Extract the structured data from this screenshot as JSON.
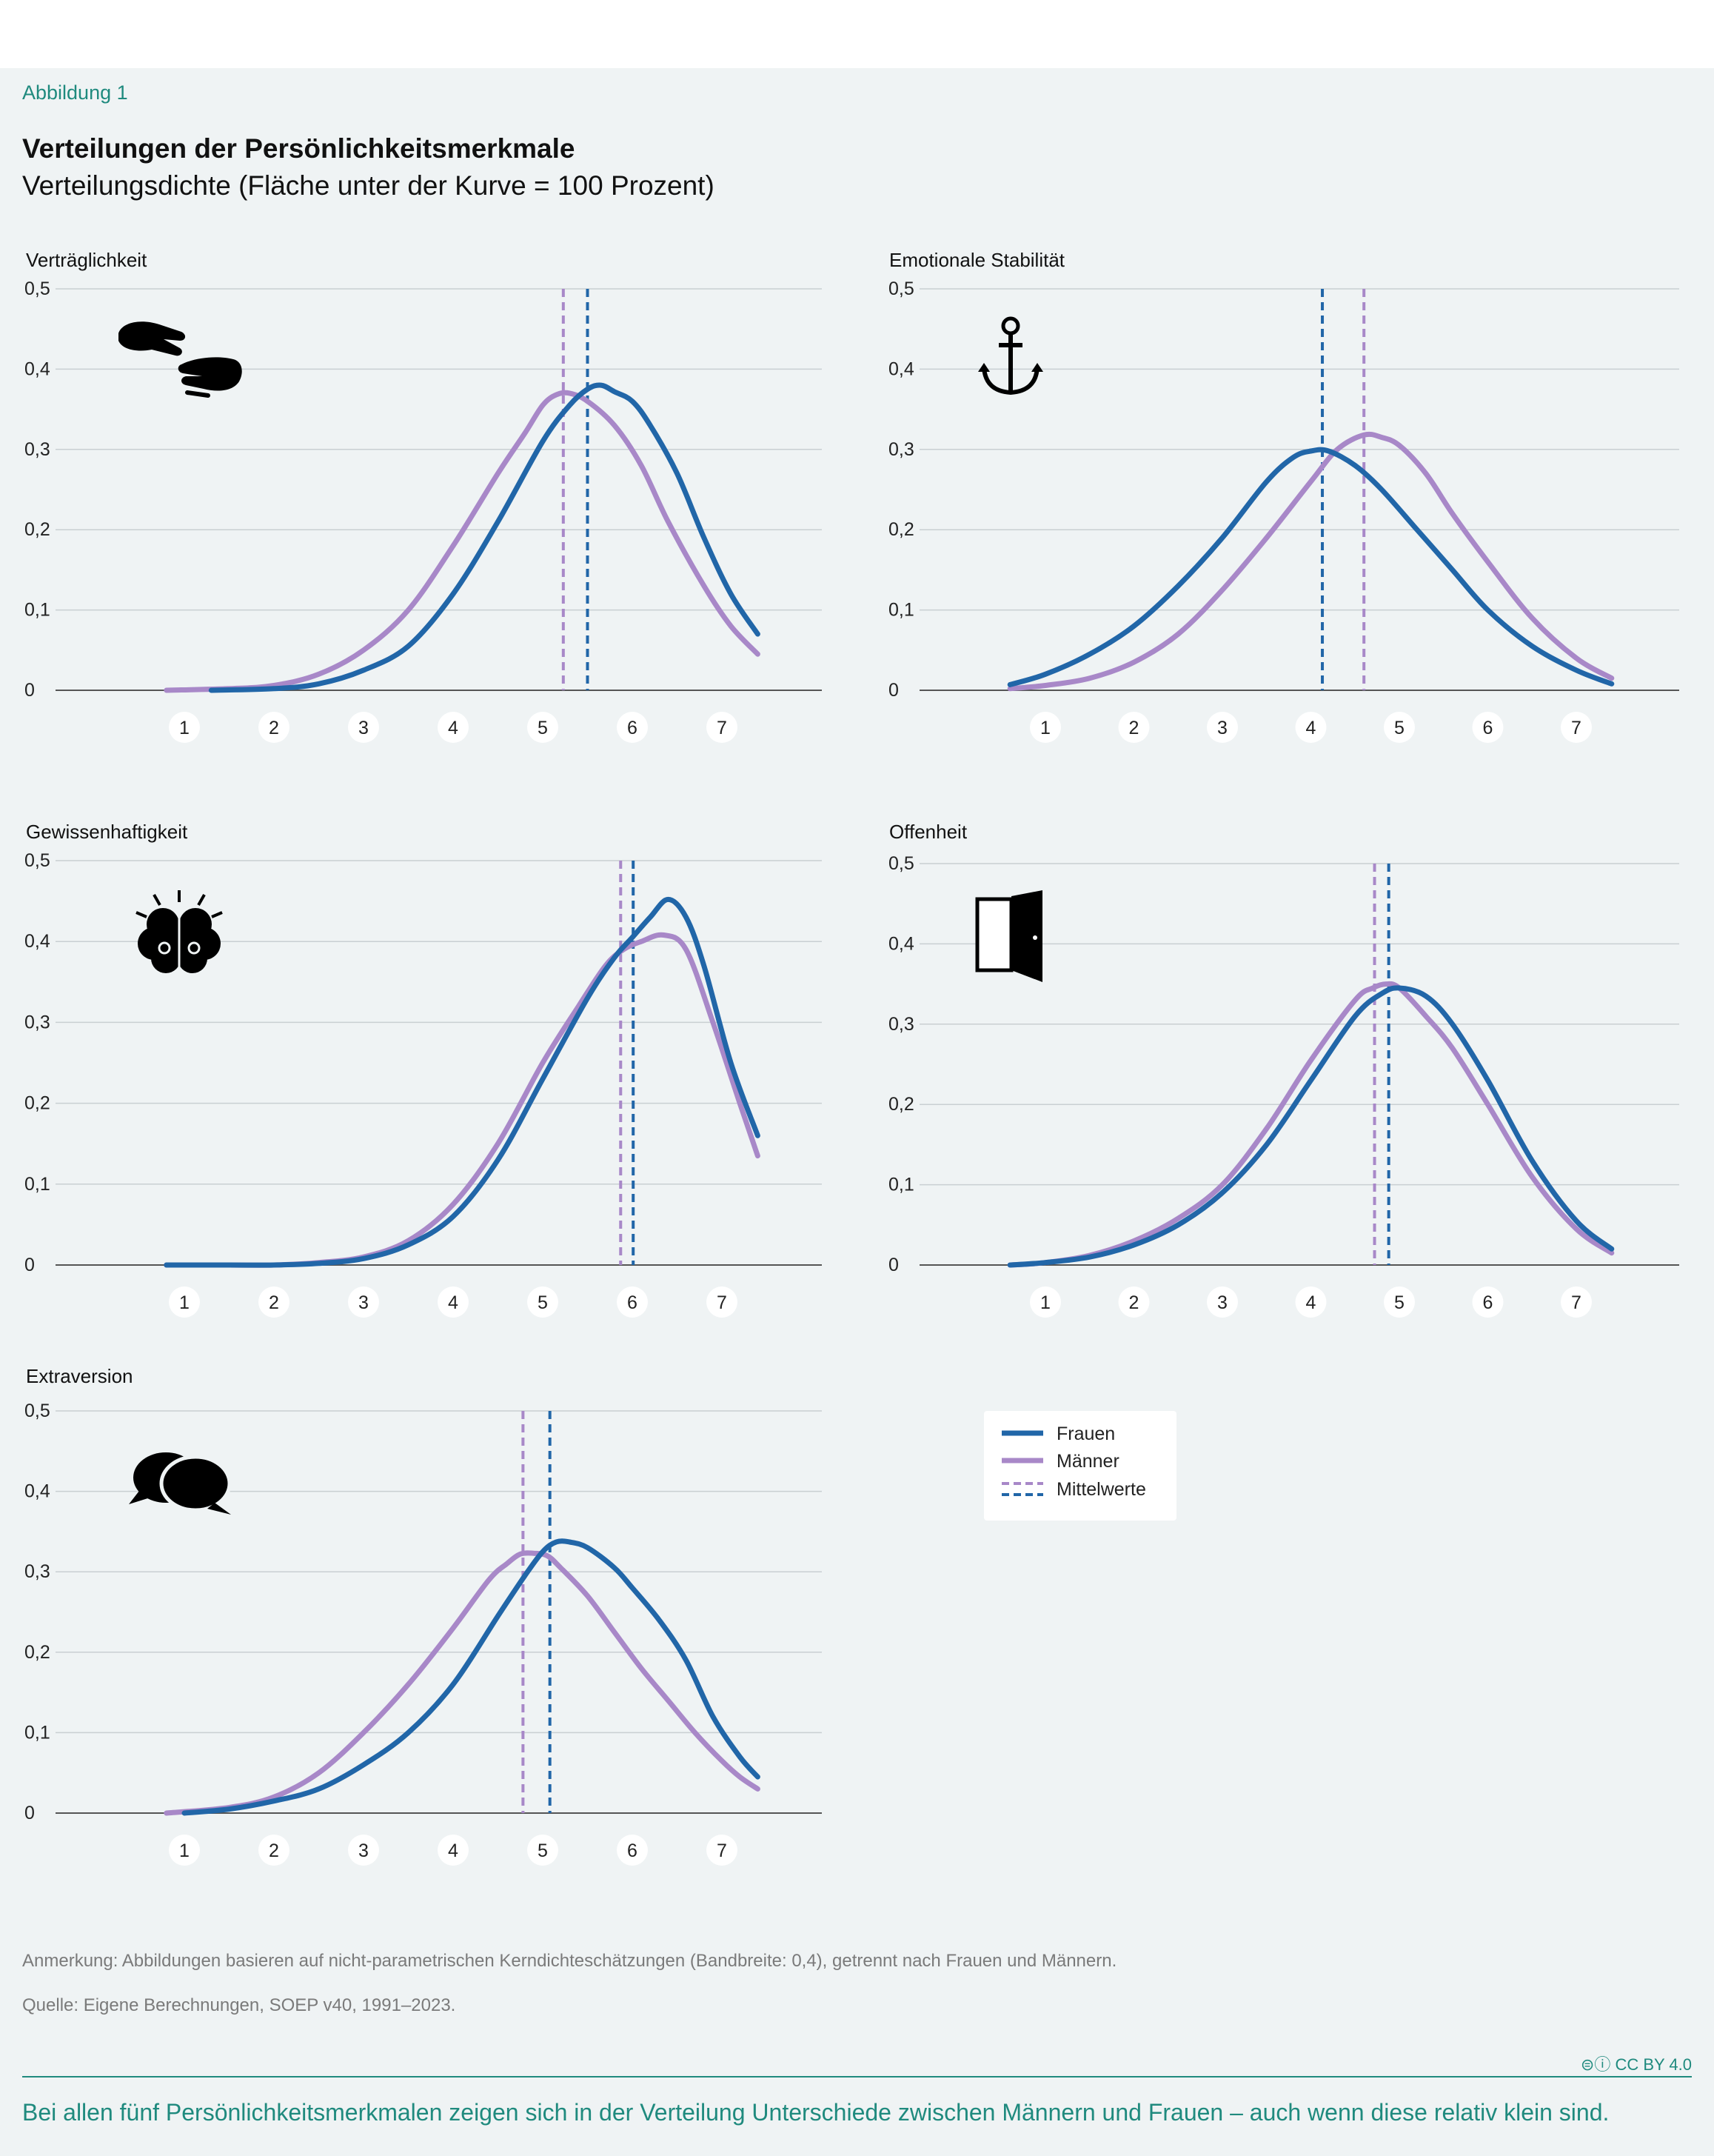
{
  "figure_label": "Abbildung 1",
  "title": "Verteilungen der Persönlichkeitsmerkmale",
  "subtitle": "Verteilungsdichte (Fläche unter der Kurve = 100 Prozent)",
  "note": "Anmerkung: Abbildungen basieren auf nicht-parametrischen Kerndichteschätzungen (Bandbreite: 0,4), getrennt nach Frauen und Männern.",
  "source": "Quelle: Eigene Berechnungen, SOEP v40, 1991–2023.",
  "license": "CC BY 4.0",
  "caption": "Bei allen fünf Persönlichkeitsmerkmalen zeigen sich in der Verteilung Unterschiede zwischen Männern und Frauen – auch wenn diese relativ klein sind.",
  "colors": {
    "frauen": "#2166a8",
    "maenner": "#a888c8",
    "grid": "#c9cfd2",
    "axis": "#555555",
    "accent": "#1f8a7e"
  },
  "legend": [
    {
      "label": "Frauen",
      "style": "frauen-solid"
    },
    {
      "label": "Männer",
      "style": "maenner-solid"
    },
    {
      "label": "Mittelwerte",
      "style": "dashed"
    }
  ],
  "chart_data": [
    {
      "type": "line",
      "title": "Verträglichkeit",
      "icon": "handshake-icon",
      "xlim": [
        0.6,
        8.2
      ],
      "ylim": [
        0,
        0.5
      ],
      "x_ticks": [
        "1",
        "2",
        "3",
        "4",
        "5",
        "6",
        "7"
      ],
      "y_ticks": [
        "0",
        "0,1",
        "0,2",
        "0,3",
        "0,4",
        "0,5"
      ],
      "grid": true,
      "series": [
        {
          "name": "Frauen",
          "x": [
            1.3,
            2.0,
            2.5,
            3.0,
            3.5,
            4.0,
            4.5,
            5.0,
            5.3,
            5.5,
            5.65,
            5.8,
            6.0,
            6.2,
            6.5,
            6.8,
            7.1,
            7.4
          ],
          "y": [
            0.0,
            0.002,
            0.008,
            0.025,
            0.055,
            0.12,
            0.21,
            0.31,
            0.355,
            0.375,
            0.38,
            0.372,
            0.36,
            0.33,
            0.27,
            0.19,
            0.12,
            0.07
          ]
        },
        {
          "name": "Männer",
          "x": [
            0.8,
            1.5,
            2.0,
            2.5,
            3.0,
            3.5,
            4.0,
            4.5,
            4.8,
            5.0,
            5.15,
            5.3,
            5.5,
            5.8,
            6.1,
            6.4,
            6.8,
            7.1,
            7.4
          ],
          "y": [
            0.0,
            0.002,
            0.006,
            0.02,
            0.05,
            0.1,
            0.18,
            0.27,
            0.32,
            0.355,
            0.368,
            0.37,
            0.36,
            0.33,
            0.28,
            0.21,
            0.13,
            0.08,
            0.045
          ]
        }
      ],
      "means": {
        "Frauen": 5.5,
        "Männer": 5.23
      }
    },
    {
      "type": "line",
      "title": "Emotionale Stabilität",
      "icon": "anchor-icon",
      "xlim": [
        0.6,
        8.2
      ],
      "ylim": [
        0,
        0.5
      ],
      "x_ticks": [
        "1",
        "2",
        "3",
        "4",
        "5",
        "6",
        "7"
      ],
      "y_ticks": [
        "0",
        "0,1",
        "0,2",
        "0,3",
        "0,4",
        "0,5"
      ],
      "grid": true,
      "series": [
        {
          "name": "Frauen",
          "x": [
            0.6,
            1.0,
            1.5,
            2.0,
            2.5,
            3.0,
            3.5,
            3.8,
            4.0,
            4.2,
            4.5,
            4.8,
            5.2,
            5.6,
            6.0,
            6.5,
            7.0,
            7.4
          ],
          "y": [
            0.007,
            0.02,
            0.045,
            0.08,
            0.13,
            0.19,
            0.26,
            0.29,
            0.298,
            0.298,
            0.28,
            0.25,
            0.2,
            0.15,
            0.1,
            0.055,
            0.025,
            0.008
          ]
        },
        {
          "name": "Männer",
          "x": [
            0.6,
            1.0,
            1.5,
            2.0,
            2.5,
            3.0,
            3.5,
            4.0,
            4.3,
            4.6,
            4.8,
            5.0,
            5.3,
            5.6,
            6.0,
            6.5,
            7.0,
            7.4
          ],
          "y": [
            0.002,
            0.006,
            0.015,
            0.035,
            0.07,
            0.125,
            0.19,
            0.26,
            0.3,
            0.318,
            0.315,
            0.305,
            0.27,
            0.22,
            0.16,
            0.09,
            0.04,
            0.015
          ]
        }
      ],
      "means": {
        "Frauen": 4.13,
        "Männer": 4.6
      }
    },
    {
      "type": "line",
      "title": "Gewissenhaftigkeit",
      "icon": "brain-icon",
      "xlim": [
        0.6,
        8.2
      ],
      "ylim": [
        0,
        0.5
      ],
      "x_ticks": [
        "1",
        "2",
        "3",
        "4",
        "5",
        "6",
        "7"
      ],
      "y_ticks": [
        "0",
        "0,1",
        "0,2",
        "0,3",
        "0,4",
        "0,5"
      ],
      "grid": true,
      "series": [
        {
          "name": "Frauen",
          "x": [
            0.8,
            1.5,
            2.0,
            2.5,
            3.0,
            3.5,
            4.0,
            4.5,
            5.0,
            5.5,
            5.8,
            6.0,
            6.2,
            6.4,
            6.6,
            6.8,
            7.1,
            7.4
          ],
          "y": [
            0.0,
            0.0,
            0.0,
            0.002,
            0.008,
            0.025,
            0.06,
            0.13,
            0.23,
            0.33,
            0.38,
            0.405,
            0.43,
            0.452,
            0.43,
            0.37,
            0.25,
            0.16
          ]
        },
        {
          "name": "Männer",
          "x": [
            0.8,
            1.5,
            2.0,
            2.5,
            3.0,
            3.5,
            4.0,
            4.5,
            5.0,
            5.4,
            5.7,
            5.9,
            6.1,
            6.35,
            6.6,
            6.9,
            7.2,
            7.4
          ],
          "y": [
            0.0,
            0.0,
            0.0,
            0.003,
            0.01,
            0.03,
            0.075,
            0.15,
            0.25,
            0.32,
            0.37,
            0.39,
            0.4,
            0.408,
            0.39,
            0.3,
            0.2,
            0.135
          ]
        }
      ],
      "means": {
        "Frauen": 6.01,
        "Männer": 5.87
      }
    },
    {
      "type": "line",
      "title": "Offenheit",
      "icon": "door-icon",
      "xlim": [
        0.6,
        8.2
      ],
      "ylim": [
        0,
        0.5
      ],
      "x_ticks": [
        "1",
        "2",
        "3",
        "4",
        "5",
        "6",
        "7"
      ],
      "y_ticks": [
        "0",
        "0,1",
        "0,2",
        "0,3",
        "0,4",
        "0,5"
      ],
      "grid": true,
      "series": [
        {
          "name": "Frauen",
          "x": [
            0.6,
            1.0,
            1.5,
            2.0,
            2.5,
            3.0,
            3.5,
            4.0,
            4.5,
            4.8,
            5.0,
            5.3,
            5.6,
            6.0,
            6.5,
            7.0,
            7.4
          ],
          "y": [
            0.0,
            0.003,
            0.01,
            0.025,
            0.05,
            0.09,
            0.15,
            0.23,
            0.31,
            0.338,
            0.345,
            0.335,
            0.3,
            0.23,
            0.13,
            0.055,
            0.02
          ]
        },
        {
          "name": "Männer",
          "x": [
            0.6,
            1.0,
            1.5,
            2.0,
            2.5,
            3.0,
            3.5,
            4.0,
            4.5,
            4.7,
            4.85,
            5.0,
            5.3,
            5.6,
            6.0,
            6.5,
            7.0,
            7.4
          ],
          "y": [
            0.0,
            0.003,
            0.012,
            0.03,
            0.058,
            0.1,
            0.17,
            0.255,
            0.33,
            0.345,
            0.35,
            0.345,
            0.31,
            0.27,
            0.2,
            0.11,
            0.045,
            0.015
          ]
        }
      ],
      "means": {
        "Frauen": 4.88,
        "Männer": 4.72
      }
    },
    {
      "type": "line",
      "title": "Extraversion",
      "icon": "speech-bubbles-icon",
      "xlim": [
        0.6,
        8.2
      ],
      "ylim": [
        0,
        0.5
      ],
      "x_ticks": [
        "1",
        "2",
        "3",
        "4",
        "5",
        "6",
        "7"
      ],
      "y_ticks": [
        "0",
        "0,1",
        "0,2",
        "0,3",
        "0,4",
        "0,5"
      ],
      "grid": true,
      "series": [
        {
          "name": "Frauen",
          "x": [
            1.0,
            1.5,
            2.0,
            2.5,
            3.0,
            3.5,
            4.0,
            4.5,
            4.8,
            5.0,
            5.15,
            5.3,
            5.5,
            5.8,
            6.0,
            6.3,
            6.6,
            6.9,
            7.2,
            7.4
          ],
          "y": [
            0.0,
            0.005,
            0.015,
            0.03,
            0.06,
            0.1,
            0.16,
            0.245,
            0.295,
            0.325,
            0.337,
            0.337,
            0.33,
            0.305,
            0.28,
            0.24,
            0.19,
            0.12,
            0.07,
            0.045
          ]
        },
        {
          "name": "Männer",
          "x": [
            0.8,
            1.5,
            2.0,
            2.5,
            3.0,
            3.5,
            4.0,
            4.4,
            4.6,
            4.75,
            4.9,
            5.05,
            5.2,
            5.5,
            5.8,
            6.1,
            6.4,
            6.7,
            7.0,
            7.2,
            7.4
          ],
          "y": [
            0.0,
            0.007,
            0.02,
            0.05,
            0.1,
            0.16,
            0.23,
            0.29,
            0.31,
            0.322,
            0.323,
            0.32,
            0.305,
            0.27,
            0.225,
            0.18,
            0.14,
            0.1,
            0.065,
            0.045,
            0.03
          ]
        }
      ],
      "means": {
        "Frauen": 5.08,
        "Männer": 4.78
      }
    }
  ]
}
